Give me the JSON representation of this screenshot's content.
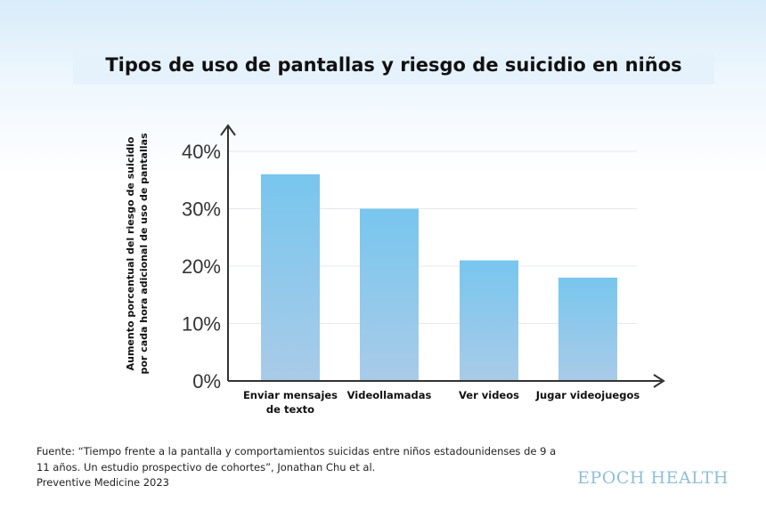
{
  "chart_data": {
    "type": "bar",
    "title": "Tipos de uso de pantallas y riesgo de suicidio en niños",
    "ylabel_lines": [
      "Aumento porcentual del riesgo de suicidio",
      "por cada hora adicional de uso de pantallas"
    ],
    "xlabel": "",
    "categories": [
      [
        "Enviar mensajes",
        "de texto"
      ],
      [
        "Videollamadas"
      ],
      [
        "Ver videos"
      ],
      [
        "Jugar videojuegos"
      ]
    ],
    "values": [
      36,
      30,
      21,
      18
    ],
    "ylim": [
      0,
      40
    ],
    "yticks": [
      0,
      10,
      20,
      30,
      40
    ],
    "ytick_labels": [
      "0%",
      "10%",
      "20%",
      "30%",
      "40%"
    ],
    "grid": true,
    "bar_color_top": "#78c6ee",
    "bar_color_bottom": "#a9cbe8"
  },
  "source": {
    "lines": [
      "Fuente: “Tiempo frente a la pantalla y comportamientos suicidas entre niños estadounidenses de 9 a",
      "11 años. Un estudio prospectivo de cohortes”, Jonathan Chu et al.",
      "Preventive Medicine 2023"
    ]
  },
  "brand": "EPOCH HEALTH"
}
